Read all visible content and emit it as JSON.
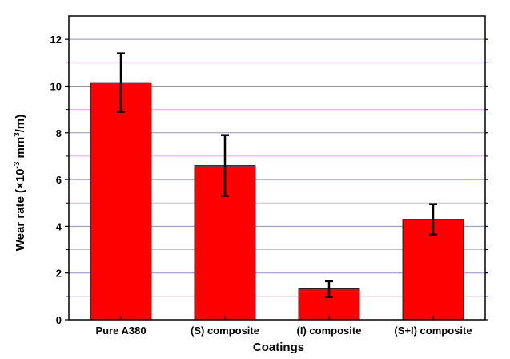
{
  "chart_data": {
    "type": "bar",
    "categories": [
      "Pure A380",
      "(S) composite",
      "(I) composite",
      "(S+I) composite"
    ],
    "values": [
      10.15,
      6.6,
      1.32,
      4.3
    ],
    "error_bars": [
      {
        "low": 8.9,
        "high": 11.4
      },
      {
        "low": 5.3,
        "high": 7.9
      },
      {
        "low": 0.97,
        "high": 1.65
      },
      {
        "low": 3.65,
        "high": 4.95
      }
    ],
    "xlabel": "Coatings",
    "ylabel": {
      "prefix": "Wear rate (×10",
      "exp1": "-3",
      "mid": " mm",
      "exp2": "3",
      "suffix": "/m)"
    },
    "ylim": [
      0,
      13
    ],
    "yticks": [
      0,
      2,
      4,
      6,
      8,
      10,
      12
    ],
    "ytick_labels": [
      "0",
      "2",
      "4",
      "6",
      "8",
      "10",
      "12"
    ],
    "grid": {
      "major_color": "#8b8bd9",
      "minor_color": "#e4a7e4",
      "major_values": [
        2,
        4,
        6,
        8,
        10,
        12
      ],
      "minor_values": [
        1,
        3,
        5,
        7,
        9,
        11
      ]
    },
    "bar_color": "#ff0000",
    "error_color": "#000000"
  }
}
